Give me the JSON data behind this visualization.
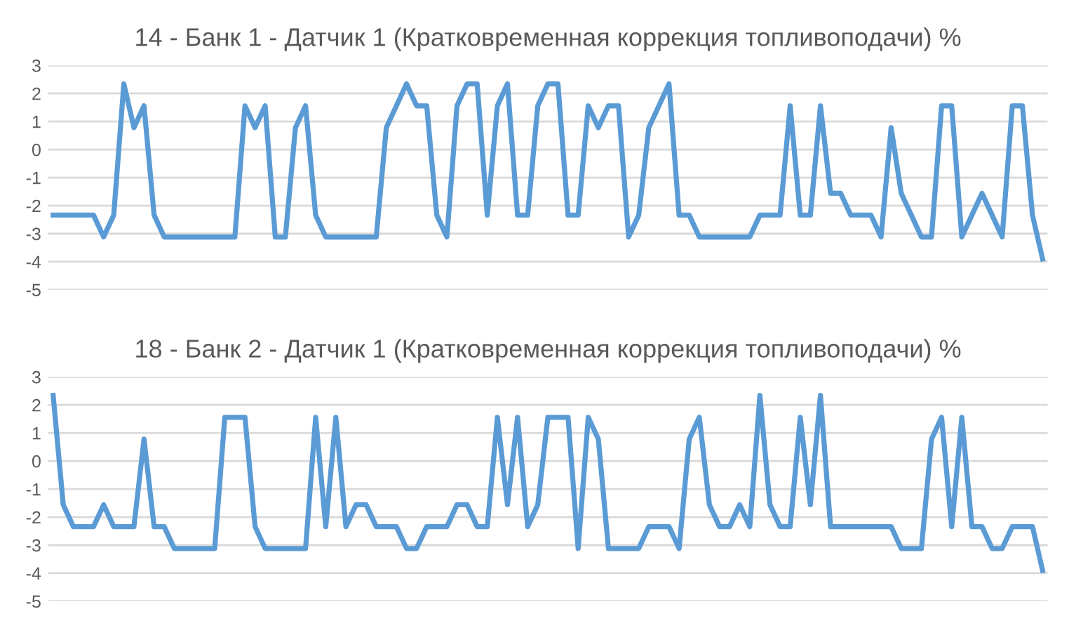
{
  "chart_data": [
    {
      "type": "line",
      "title": "14 - Банк 1 - Датчик 1 (Кратковременная коррекция топливоподачи) %",
      "categories": [
        null,
        null,
        null,
        null,
        null,
        null,
        null,
        null,
        null,
        null,
        null,
        null,
        null,
        null,
        null,
        null,
        null,
        null,
        null,
        null,
        null,
        null,
        null,
        null,
        null,
        null,
        null,
        null,
        null,
        null,
        null,
        null,
        null,
        null,
        null,
        null,
        null,
        null,
        null,
        null,
        null,
        null,
        null,
        null,
        null,
        null,
        null,
        null,
        null,
        null,
        null,
        null,
        null,
        null,
        null,
        null,
        null,
        null,
        null,
        null,
        null,
        null,
        null,
        null,
        null,
        null,
        null,
        null,
        null,
        null,
        null,
        null,
        null,
        null,
        null,
        null,
        null,
        null,
        null,
        null,
        null,
        null,
        null,
        null,
        null,
        null,
        null,
        null,
        null,
        null,
        null,
        null,
        null,
        null,
        null,
        null,
        null,
        null,
        null
      ],
      "series": [
        {
          "color": "#5b9bd5",
          "values": [
            -2.34,
            -2.34,
            -2.34,
            -2.34,
            -2.34,
            -3.12,
            -2.34,
            2.34,
            0.78,
            1.56,
            -2.34,
            -3.12,
            -3.12,
            -3.12,
            -3.12,
            -3.12,
            -3.12,
            -3.12,
            -3.12,
            1.56,
            0.78,
            1.56,
            -3.12,
            -3.12,
            0.78,
            1.56,
            -2.34,
            -3.12,
            -3.12,
            -3.12,
            -3.12,
            -3.12,
            -3.12,
            0.78,
            1.56,
            2.34,
            1.56,
            1.56,
            -2.34,
            -3.12,
            1.56,
            2.34,
            2.34,
            -2.34,
            1.56,
            2.34,
            -2.34,
            -2.34,
            1.56,
            2.34,
            2.34,
            -2.34,
            -2.34,
            1.56,
            0.78,
            1.56,
            1.56,
            -3.12,
            -2.34,
            0.78,
            1.56,
            2.34,
            -2.34,
            -2.34,
            -3.12,
            -3.12,
            -3.12,
            -3.12,
            -3.12,
            -3.12,
            -2.34,
            -2.34,
            -2.34,
            1.56,
            -2.34,
            -2.34,
            1.56,
            -1.56,
            -1.56,
            -2.34,
            -2.34,
            -2.34,
            -3.12,
            0.78,
            -1.56,
            -2.34,
            -3.12,
            -3.12,
            1.56,
            1.56,
            -3.12,
            -2.34,
            -1.56,
            -2.34,
            -3.12,
            1.56,
            1.56,
            -2.34,
            -3.9
          ]
        }
      ],
      "ylim": [
        -5,
        3
      ],
      "yticks": [
        -5,
        -4,
        -3,
        -2,
        -1,
        0,
        1,
        2,
        3
      ],
      "grid": "y",
      "tick_labels": "y"
    },
    {
      "type": "line",
      "title": "18 - Банк 2 - Датчик 1 (Кратковременная коррекция топливоподачи) %",
      "categories": [
        null,
        null,
        null,
        null,
        null,
        null,
        null,
        null,
        null,
        null,
        null,
        null,
        null,
        null,
        null,
        null,
        null,
        null,
        null,
        null,
        null,
        null,
        null,
        null,
        null,
        null,
        null,
        null,
        null,
        null,
        null,
        null,
        null,
        null,
        null,
        null,
        null,
        null,
        null,
        null,
        null,
        null,
        null,
        null,
        null,
        null,
        null,
        null,
        null,
        null,
        null,
        null,
        null,
        null,
        null,
        null,
        null,
        null,
        null,
        null,
        null,
        null,
        null,
        null,
        null,
        null,
        null,
        null,
        null,
        null,
        null,
        null,
        null,
        null,
        null,
        null,
        null,
        null,
        null,
        null,
        null,
        null,
        null,
        null,
        null,
        null,
        null,
        null,
        null,
        null,
        null,
        null,
        null,
        null,
        null,
        null,
        null,
        null,
        null
      ],
      "series": [
        {
          "color": "#5b9bd5",
          "values": [
            2.34,
            -1.56,
            -2.34,
            -2.34,
            -2.34,
            -1.56,
            -2.34,
            -2.34,
            -2.34,
            0.78,
            -2.34,
            -2.34,
            -3.12,
            -3.12,
            -3.12,
            -3.12,
            -3.12,
            1.56,
            1.56,
            1.56,
            -2.34,
            -3.12,
            -3.12,
            -3.12,
            -3.12,
            -3.12,
            1.56,
            -2.34,
            1.56,
            -2.34,
            -1.56,
            -1.56,
            -2.34,
            -2.34,
            -2.34,
            -3.12,
            -3.12,
            -2.34,
            -2.34,
            -2.34,
            -1.56,
            -1.56,
            -2.34,
            -2.34,
            1.56,
            -1.56,
            1.56,
            -2.34,
            -1.56,
            1.56,
            1.56,
            1.56,
            -3.12,
            1.56,
            0.78,
            -3.12,
            -3.12,
            -3.12,
            -3.12,
            -2.34,
            -2.34,
            -2.34,
            -3.12,
            0.78,
            1.56,
            -1.56,
            -2.34,
            -2.34,
            -1.56,
            -2.34,
            2.34,
            -1.56,
            -2.34,
            -2.34,
            1.56,
            -1.56,
            2.34,
            -2.34,
            -2.34,
            -2.34,
            -2.34,
            -2.34,
            -2.34,
            -2.34,
            -3.12,
            -3.12,
            -3.12,
            0.78,
            1.56,
            -2.34,
            1.56,
            -2.34,
            -2.34,
            -3.12,
            -3.12,
            -2.34,
            -2.34,
            -2.34,
            -3.9
          ]
        }
      ],
      "ylim": [
        -5,
        3
      ],
      "yticks": [
        -5,
        -4,
        -3,
        -2,
        -1,
        0,
        1,
        2,
        3
      ],
      "grid": "y",
      "tick_labels": "y"
    }
  ]
}
